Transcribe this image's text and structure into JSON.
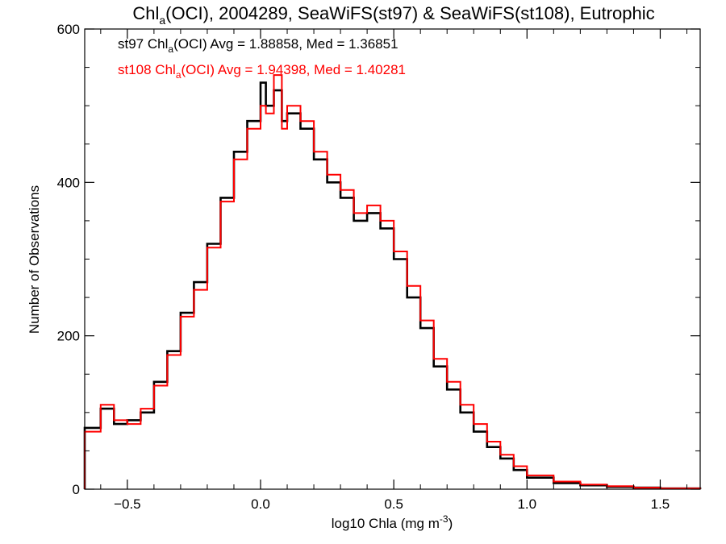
{
  "chart_data": {
    "type": "line",
    "title": {
      "pre": "Chl",
      "sub": "a",
      "post": "(OCI), 2004289, SeaWiFS(st97) & SeaWiFS(st108), Eutrophic"
    },
    "xlabel": {
      "pre": "log10 Chla (mg m",
      "sup": "-3",
      "post": ")"
    },
    "ylabel": "Number of Observations",
    "xlim": [
      -0.66,
      1.65
    ],
    "ylim": [
      0,
      600
    ],
    "xticks": [
      -0.5,
      0.0,
      0.5,
      1.0,
      1.5
    ],
    "xtick_labels": [
      "−0.5",
      "0.0",
      "0.5",
      "1.0",
      "1.5"
    ],
    "yticks": [
      0,
      200,
      400,
      600
    ],
    "ytick_labels": [
      "0",
      "200",
      "400",
      "600"
    ],
    "grid": false,
    "series": [
      {
        "name": "st97",
        "color": "#000000",
        "legend": {
          "pre": "st97 Chl",
          "sub": "a",
          "post": "(OCI) Avg = 1.88858, Med = 1.36851"
        },
        "x": [
          -0.66,
          -0.6,
          -0.55,
          -0.5,
          -0.45,
          -0.4,
          -0.35,
          -0.3,
          -0.25,
          -0.2,
          -0.15,
          -0.1,
          -0.05,
          0.0,
          0.02,
          0.05,
          0.08,
          0.1,
          0.15,
          0.2,
          0.25,
          0.3,
          0.35,
          0.4,
          0.45,
          0.5,
          0.55,
          0.6,
          0.65,
          0.7,
          0.75,
          0.8,
          0.85,
          0.9,
          0.95,
          1.0,
          1.1,
          1.2,
          1.3,
          1.4,
          1.5,
          1.65
        ],
        "y": [
          80,
          105,
          85,
          90,
          100,
          140,
          180,
          230,
          270,
          320,
          380,
          440,
          480,
          530,
          500,
          520,
          480,
          490,
          470,
          430,
          400,
          380,
          350,
          360,
          340,
          300,
          250,
          210,
          160,
          130,
          100,
          75,
          55,
          40,
          25,
          15,
          8,
          5,
          3,
          2,
          1,
          0
        ]
      },
      {
        "name": "st108",
        "color": "#ff0000",
        "legend": {
          "pre": "st108 Chl",
          "sub": "a",
          "post": "(OCI) Avg = 1.94398, Med = 1.40281"
        },
        "x": [
          -0.66,
          -0.6,
          -0.55,
          -0.5,
          -0.45,
          -0.4,
          -0.35,
          -0.3,
          -0.25,
          -0.2,
          -0.15,
          -0.1,
          -0.05,
          0.0,
          0.02,
          0.05,
          0.08,
          0.1,
          0.15,
          0.2,
          0.25,
          0.3,
          0.35,
          0.4,
          0.45,
          0.5,
          0.55,
          0.6,
          0.65,
          0.7,
          0.75,
          0.8,
          0.85,
          0.9,
          0.95,
          1.0,
          1.1,
          1.2,
          1.3,
          1.4,
          1.5,
          1.65
        ],
        "y": [
          75,
          110,
          90,
          85,
          105,
          135,
          175,
          225,
          260,
          315,
          375,
          430,
          470,
          500,
          490,
          540,
          470,
          500,
          480,
          440,
          410,
          390,
          360,
          370,
          350,
          310,
          265,
          220,
          170,
          140,
          110,
          85,
          62,
          45,
          30,
          18,
          10,
          6,
          4,
          2,
          1,
          0
        ]
      }
    ]
  }
}
